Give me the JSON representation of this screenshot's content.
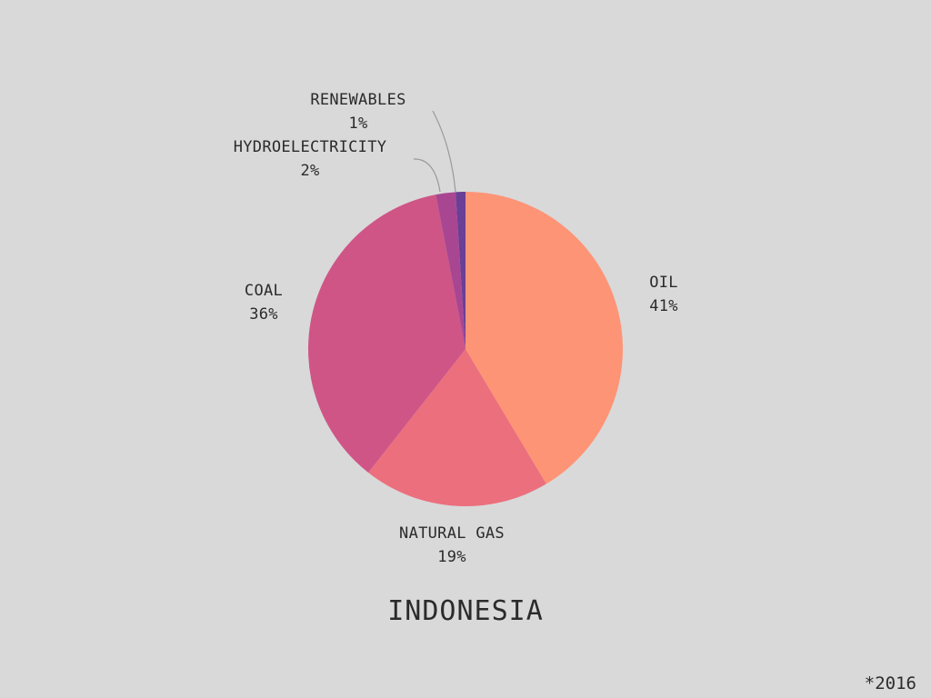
{
  "chart_data": {
    "type": "pie",
    "title": "INDONESIA",
    "footnote": "*2016",
    "slices": [
      {
        "name": "OIL",
        "value": 41,
        "label": "41%",
        "color": "#fe9476"
      },
      {
        "name": "NATURAL GAS",
        "value": 19,
        "label": "19%",
        "color": "#ec6f7e"
      },
      {
        "name": "COAL",
        "value": 36,
        "label": "36%",
        "color": "#cf5587"
      },
      {
        "name": "HYDROELECTRICITY",
        "value": 2,
        "label": "2%",
        "color": "#a94692"
      },
      {
        "name": "RENEWABLES",
        "value": 1,
        "label": "1%",
        "color": "#6a3f96"
      }
    ]
  }
}
